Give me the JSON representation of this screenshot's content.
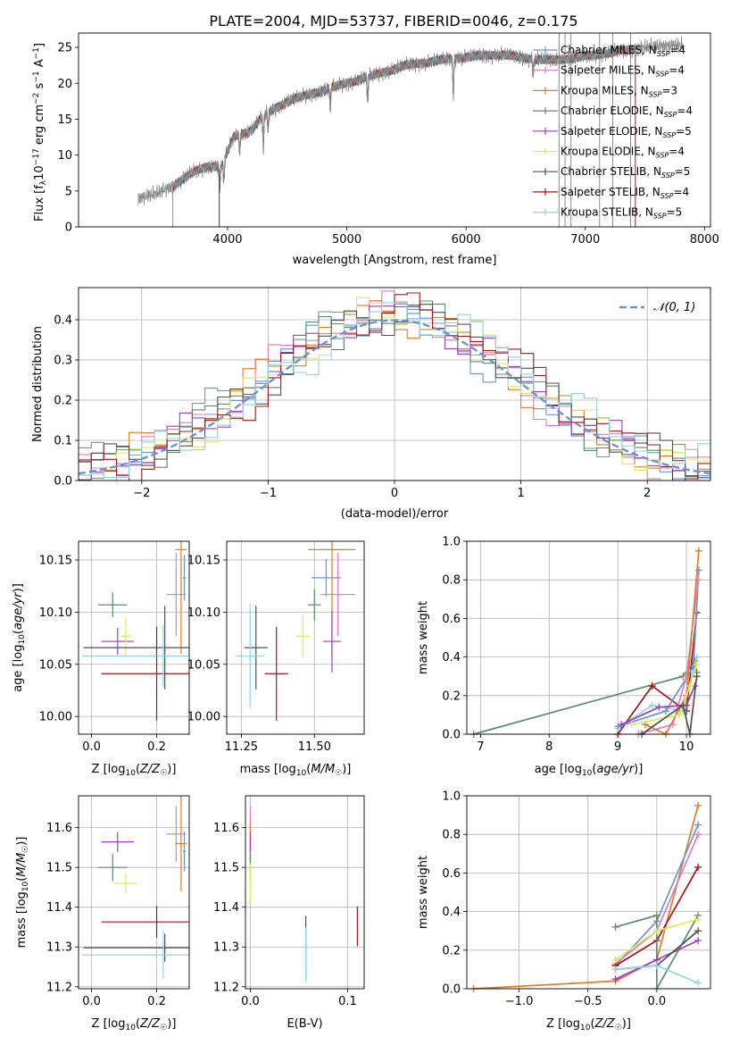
{
  "title": "PLATE=2004, MJD=53737, FIBERID=0046, z=0.175",
  "colors": {
    "chabrier_miles": "#6a93d6",
    "salpeter_miles": "#e879b9",
    "kroupa_miles": "#e07b27",
    "chabrier_elodie": "#5b8c64",
    "salpeter_elodie": "#9b3fbf",
    "kroupa_elodie": "#d6ec5a",
    "chabrier_stelib": "#505050",
    "salpeter_stelib": "#a0161b",
    "kroupa_stelib": "#8fd3e8",
    "gaussian": "#6a93d6"
  },
  "chart_data": [
    {
      "id": "spectrum",
      "type": "line",
      "xlabel": "wavelength [Angstrom, rest frame]",
      "ylabel_parts": [
        "Flux [f",
        "λ",
        "10",
        "−17",
        " erg cm",
        "−2",
        " s",
        "−1",
        " A",
        "−1",
        "]"
      ],
      "xlim": [
        2750,
        8050
      ],
      "ylim": [
        0,
        27
      ],
      "xticks": [
        4000,
        5000,
        6000,
        7000,
        8000
      ],
      "yticks": [
        0,
        5,
        10,
        15,
        20,
        25
      ],
      "legend_position": "right",
      "legend": [
        {
          "name": "Chabrier MILES",
          "nssp": "4",
          "color": "chabrier_miles"
        },
        {
          "name": "Salpeter MILES",
          "nssp": "4",
          "color": "salpeter_miles"
        },
        {
          "name": "Kroupa MILES",
          "nssp": "3",
          "color": "kroupa_miles"
        },
        {
          "name": "Chabrier ELODIE",
          "nssp": "4",
          "color": "chabrier_elodie"
        },
        {
          "name": "Salpeter ELODIE",
          "nssp": "5",
          "color": "salpeter_elodie"
        },
        {
          "name": "Kroupa ELODIE",
          "nssp": "4",
          "color": "kroupa_elodie"
        },
        {
          "name": "Chabrier STELIB",
          "nssp": "5",
          "color": "chabrier_stelib"
        },
        {
          "name": "Salpeter STELIB",
          "nssp": "4",
          "color": "salpeter_stelib"
        },
        {
          "name": "Kroupa STELIB",
          "nssp": "5",
          "color": "kroupa_stelib"
        }
      ],
      "continuum": [
        [
          3250,
          4
        ],
        [
          3400,
          4.6
        ],
        [
          3550,
          5.8
        ],
        [
          3700,
          7.5
        ],
        [
          3850,
          8.5
        ],
        [
          3950,
          8.5
        ],
        [
          4050,
          12.5
        ],
        [
          4200,
          13.5
        ],
        [
          4300,
          15.5
        ],
        [
          4500,
          17.5
        ],
        [
          4700,
          18.5
        ],
        [
          4900,
          19.5
        ],
        [
          5100,
          20.5
        ],
        [
          5300,
          21.5
        ],
        [
          5500,
          22.5
        ],
        [
          5700,
          23
        ],
        [
          5900,
          23.5
        ],
        [
          6100,
          23.8
        ],
        [
          6300,
          24
        ],
        [
          6500,
          23.5
        ],
        [
          6700,
          23.2
        ],
        [
          6900,
          23.5
        ],
        [
          7100,
          24
        ],
        [
          7300,
          24.5
        ],
        [
          7500,
          25
        ],
        [
          7700,
          25.3
        ],
        [
          7800,
          25.3
        ]
      ],
      "absorption": [
        [
          3934,
          3
        ],
        [
          3969,
          3
        ],
        [
          4102,
          2.5
        ],
        [
          4300,
          4
        ],
        [
          4340,
          2.5
        ],
        [
          4861,
          2.5
        ],
        [
          5175,
          3.5
        ],
        [
          5893,
          4.5
        ],
        [
          6563,
          2
        ]
      ],
      "data_xrange": [
        3250,
        7820
      ],
      "model_xrange": [
        3540,
        7420
      ],
      "grey_spikes": [
        6780,
        6830,
        6880,
        7120,
        7230,
        7380
      ]
    },
    {
      "id": "residuals",
      "type": "area",
      "xlabel": "(data-model)/error",
      "ylabel": "Normed distribution",
      "xlim": [
        -2.5,
        2.5
      ],
      "ylim": [
        0,
        0.48
      ],
      "xticks": [
        -2,
        -1,
        0,
        1,
        2
      ],
      "yticks": [
        0.0,
        0.1,
        0.2,
        0.3,
        0.4
      ],
      "grid": true,
      "legend_position": "top-right",
      "gaussian_label": "𝒩(0, 1)",
      "bin_width": 0.1,
      "series_colors": [
        "chabrier_miles",
        "salpeter_miles",
        "kroupa_miles",
        "chabrier_elodie",
        "salpeter_elodie",
        "kroupa_elodie",
        "chabrier_stelib",
        "salpeter_stelib",
        "kroupa_stelib"
      ]
    },
    {
      "id": "age_vs_Z",
      "type": "scatter",
      "xlabel": "Z [log10(Z/Z☉)]",
      "ylabel": "age [log10(age/yr)]",
      "xlim": [
        -0.04,
        0.3
      ],
      "ylim": [
        9.983,
        10.168
      ],
      "xticks": [
        0.0,
        0.2
      ],
      "yticks": [
        10.0,
        10.05,
        10.1,
        10.15
      ],
      "grid": true,
      "points": [
        {
          "color": "chabrier_miles",
          "x": 0.285,
          "y": 10.133,
          "xerr": 0.005,
          "yerr": 0.022
        },
        {
          "color": "salpeter_miles",
          "x": 0.26,
          "y": 10.117,
          "xerr": 0.03,
          "yerr": 0.04
        },
        {
          "color": "kroupa_miles",
          "x": 0.275,
          "y": 10.16,
          "xerr": 0.018,
          "yerr": 0.1
        },
        {
          "color": "chabrier_elodie",
          "x": 0.065,
          "y": 10.107,
          "xerr": 0.045,
          "yerr": 0.012
        },
        {
          "color": "salpeter_elodie",
          "x": 0.08,
          "y": 10.072,
          "xerr": 0.05,
          "yerr": 0.013
        },
        {
          "color": "kroupa_elodie",
          "x": 0.105,
          "y": 10.077,
          "xerr": 0.015,
          "yerr": 0.018
        },
        {
          "color": "chabrier_stelib",
          "x": 0.225,
          "y": 10.066,
          "xerr": 0.25,
          "yerr": 0.04
        },
        {
          "color": "salpeter_stelib",
          "x": 0.2,
          "y": 10.041,
          "xerr": 0.17,
          "yerr": 0.045
        },
        {
          "color": "kroupa_stelib",
          "x": 0.22,
          "y": 10.058,
          "xerr": 0.25,
          "yerr": 0.03
        }
      ]
    },
    {
      "id": "age_vs_mass",
      "type": "scatter",
      "xlabel": "mass [log10(M/M☉)]",
      "ylabel": "",
      "xlim": [
        11.2,
        11.67
      ],
      "ylim": [
        9.983,
        10.168
      ],
      "xticks": [
        11.25,
        11.5
      ],
      "yticks": [
        10.0,
        10.05,
        10.1,
        10.15
      ],
      "grid": true,
      "points": [
        {
          "color": "chabrier_miles",
          "x": 11.54,
          "y": 10.133,
          "xerr": 0.05,
          "yerr": 0.018
        },
        {
          "color": "salpeter_miles",
          "x": 11.58,
          "y": 10.117,
          "xerr": 0.06,
          "yerr": 0.04
        },
        {
          "color": "kroupa_miles",
          "x": 11.56,
          "y": 10.16,
          "xerr": 0.08,
          "yerr": 0.1
        },
        {
          "color": "chabrier_elodie",
          "x": 11.5,
          "y": 10.107,
          "xerr": 0.022,
          "yerr": 0.015
        },
        {
          "color": "salpeter_elodie",
          "x": 11.56,
          "y": 10.072,
          "xerr": 0.03,
          "yerr": 0.03
        },
        {
          "color": "kroupa_elodie",
          "x": 11.46,
          "y": 10.077,
          "xerr": 0.025,
          "yerr": 0.02
        },
        {
          "color": "chabrier_stelib",
          "x": 11.3,
          "y": 10.066,
          "xerr": 0.04,
          "yerr": 0.04
        },
        {
          "color": "salpeter_stelib",
          "x": 11.37,
          "y": 10.041,
          "xerr": 0.04,
          "yerr": 0.045
        },
        {
          "color": "kroupa_stelib",
          "x": 11.28,
          "y": 10.058,
          "xerr": 0.05,
          "yerr": 0.05
        }
      ]
    },
    {
      "id": "weight_vs_age",
      "type": "line",
      "xlabel": "age [log10(age/yr)]",
      "ylabel": "mass weight",
      "xlim": [
        6.8,
        10.35
      ],
      "ylim": [
        0,
        1.0
      ],
      "xticks": [
        7,
        8,
        9,
        10
      ],
      "yticks": [
        0.0,
        0.2,
        0.4,
        0.6,
        0.8,
        1.0
      ],
      "grid": true,
      "series": [
        {
          "color": "chabrier_elodie",
          "points": [
            [
              6.9,
              0.0
            ],
            [
              9.95,
              0.3
            ],
            [
              10.12,
              0.38
            ],
            [
              10.15,
              0.32
            ]
          ]
        },
        {
          "color": "salpeter_stelib",
          "points": [
            [
              9.0,
              0.0
            ],
            [
              9.5,
              0.25
            ],
            [
              10.0,
              0.12
            ],
            [
              10.15,
              0.63
            ]
          ]
        },
        {
          "color": "kroupa_stelib",
          "points": [
            [
              9.0,
              0.03
            ],
            [
              9.5,
              0.15
            ],
            [
              9.95,
              0.12
            ],
            [
              10.15,
              0.4
            ]
          ]
        },
        {
          "color": "chabrier_miles",
          "points": [
            [
              9.0,
              0.04
            ],
            [
              9.7,
              0.12
            ],
            [
              10.1,
              0.35
            ],
            [
              10.18,
              0.85
            ]
          ]
        },
        {
          "color": "salpeter_miles",
          "points": [
            [
              9.3,
              0.0
            ],
            [
              9.8,
              0.05
            ],
            [
              10.0,
              0.3
            ],
            [
              10.17,
              0.8
            ]
          ]
        },
        {
          "color": "kroupa_miles",
          "points": [
            [
              9.4,
              0.05
            ],
            [
              9.7,
              0.0
            ],
            [
              10.0,
              0.2
            ],
            [
              10.18,
              0.95
            ]
          ]
        },
        {
          "color": "salpeter_elodie",
          "points": [
            [
              9.05,
              0.05
            ],
            [
              9.6,
              0.14
            ],
            [
              10.0,
              0.15
            ],
            [
              10.12,
              0.25
            ]
          ]
        },
        {
          "color": "kroupa_elodie",
          "points": [
            [
              9.2,
              0.05
            ],
            [
              9.9,
              0.1
            ],
            [
              10.05,
              0.25
            ],
            [
              10.15,
              0.36
            ]
          ]
        },
        {
          "color": "chabrier_stelib",
          "points": [
            [
              9.35,
              0.0
            ],
            [
              9.95,
              0.15
            ],
            [
              10.05,
              0.0
            ],
            [
              10.15,
              0.3
            ]
          ]
        }
      ]
    },
    {
      "id": "mass_vs_Z",
      "type": "scatter",
      "xlabel": "Z [log10(Z/Z☉)]",
      "ylabel": "mass [log10(M/M☉)]",
      "xlim": [
        -0.04,
        0.3
      ],
      "ylim": [
        11.195,
        11.68
      ],
      "xticks": [
        0.0,
        0.2
      ],
      "yticks": [
        11.2,
        11.3,
        11.4,
        11.5,
        11.6
      ],
      "grid": true,
      "points": [
        {
          "color": "chabrier_miles",
          "x": 0.285,
          "y": 11.54,
          "xerr": 0.005,
          "yerr": 0.05
        },
        {
          "color": "salpeter_miles",
          "x": 0.26,
          "y": 11.584,
          "xerr": 0.03,
          "yerr": 0.07
        },
        {
          "color": "kroupa_miles",
          "x": 0.275,
          "y": 11.56,
          "xerr": 0.018,
          "yerr": 0.12
        },
        {
          "color": "chabrier_elodie",
          "x": 0.065,
          "y": 11.5,
          "xerr": 0.045,
          "yerr": 0.035
        },
        {
          "color": "salpeter_elodie",
          "x": 0.08,
          "y": 11.564,
          "xerr": 0.05,
          "yerr": 0.025
        },
        {
          "color": "kroupa_elodie",
          "x": 0.105,
          "y": 11.46,
          "xerr": 0.035,
          "yerr": 0.025
        },
        {
          "color": "chabrier_stelib",
          "x": 0.225,
          "y": 11.298,
          "xerr": 0.25,
          "yerr": 0.035
        },
        {
          "color": "salpeter_stelib",
          "x": 0.2,
          "y": 11.363,
          "xerr": 0.17,
          "yerr": 0.04
        },
        {
          "color": "kroupa_stelib",
          "x": 0.22,
          "y": 11.28,
          "xerr": 0.25,
          "yerr": 0.06
        }
      ]
    },
    {
      "id": "mass_vs_ebv",
      "type": "scatter",
      "xlabel": "E(B-V)",
      "ylabel": "",
      "xlim": [
        -0.005,
        0.117
      ],
      "ylim": [
        11.195,
        11.68
      ],
      "xticks": [
        0.0,
        0.1
      ],
      "yticks": [
        11.2,
        11.3,
        11.4,
        11.5,
        11.6
      ],
      "grid": true,
      "points": [
        {
          "color": "chabrier_miles",
          "x": 0.0,
          "y": 11.54,
          "xerr": 0,
          "yerr": 0.05
        },
        {
          "color": "salpeter_miles",
          "x": 0.0,
          "y": 11.584,
          "xerr": 0,
          "yerr": 0.07
        },
        {
          "color": "kroupa_miles",
          "x": 0.0,
          "y": 11.56,
          "xerr": 0,
          "yerr": 0.05
        },
        {
          "color": "chabrier_elodie",
          "x": 0.0,
          "y": 11.5,
          "xerr": 0,
          "yerr": 0.035
        },
        {
          "color": "salpeter_elodie",
          "x": 0.0,
          "y": 11.564,
          "xerr": 0,
          "yerr": 0.025
        },
        {
          "color": "kroupa_elodie",
          "x": 0.0,
          "y": 11.46,
          "xerr": 0,
          "yerr": 0.05
        },
        {
          "color": "chabrier_stelib",
          "x": 0.057,
          "y": 11.298,
          "xerr": 0,
          "yerr": 0.08
        },
        {
          "color": "salpeter_stelib",
          "x": 0.11,
          "y": 11.352,
          "xerr": 0,
          "yerr": 0.05
        },
        {
          "color": "kroupa_stelib",
          "x": 0.057,
          "y": 11.28,
          "xerr": 0,
          "yerr": 0.07
        }
      ]
    },
    {
      "id": "weight_vs_Z",
      "type": "line",
      "xlabel": "Z [log10(Z/Z☉)]",
      "ylabel": "mass weight",
      "xlim": [
        -1.38,
        0.39
      ],
      "ylim": [
        0,
        1.0
      ],
      "xticks": [
        -1.0,
        -0.5,
        0.0
      ],
      "yticks": [
        0.0,
        0.2,
        0.4,
        0.6,
        0.8,
        1.0
      ],
      "grid": true,
      "series": [
        {
          "color": "kroupa_miles",
          "points": [
            [
              -1.33,
              0.0
            ],
            [
              -0.3,
              0.04
            ],
            [
              0.0,
              0.15
            ],
            [
              0.3,
              0.95
            ]
          ]
        },
        {
          "color": "chabrier_miles",
          "points": [
            [
              -0.3,
              0.12
            ],
            [
              0.0,
              0.35
            ],
            [
              0.3,
              0.85
            ]
          ]
        },
        {
          "color": "salpeter_miles",
          "points": [
            [
              -0.3,
              0.13
            ],
            [
              0.0,
              0.3
            ],
            [
              0.3,
              0.8
            ]
          ]
        },
        {
          "color": "salpeter_stelib",
          "points": [
            [
              -0.3,
              0.12
            ],
            [
              0.0,
              0.25
            ],
            [
              0.3,
              0.63
            ]
          ]
        },
        {
          "color": "chabrier_elodie",
          "points": [
            [
              -0.3,
              0.32
            ],
            [
              0.0,
              0.38
            ],
            [
              0.0,
              0.0
            ],
            [
              0.3,
              0.38
            ]
          ]
        },
        {
          "color": "kroupa_elodie",
          "points": [
            [
              -0.3,
              0.15
            ],
            [
              0.0,
              0.3
            ],
            [
              0.3,
              0.36
            ]
          ]
        },
        {
          "color": "salpeter_elodie",
          "points": [
            [
              -0.3,
              0.05
            ],
            [
              0.0,
              0.15
            ],
            [
              0.3,
              0.25
            ]
          ]
        },
        {
          "color": "chabrier_stelib",
          "points": [
            [
              -0.3,
              0.1
            ],
            [
              0.0,
              0.12
            ],
            [
              0.3,
              0.3
            ]
          ]
        },
        {
          "color": "kroupa_stelib",
          "points": [
            [
              -0.3,
              0.1
            ],
            [
              0.0,
              0.12
            ],
            [
              0.3,
              0.03
            ]
          ]
        }
      ]
    }
  ]
}
